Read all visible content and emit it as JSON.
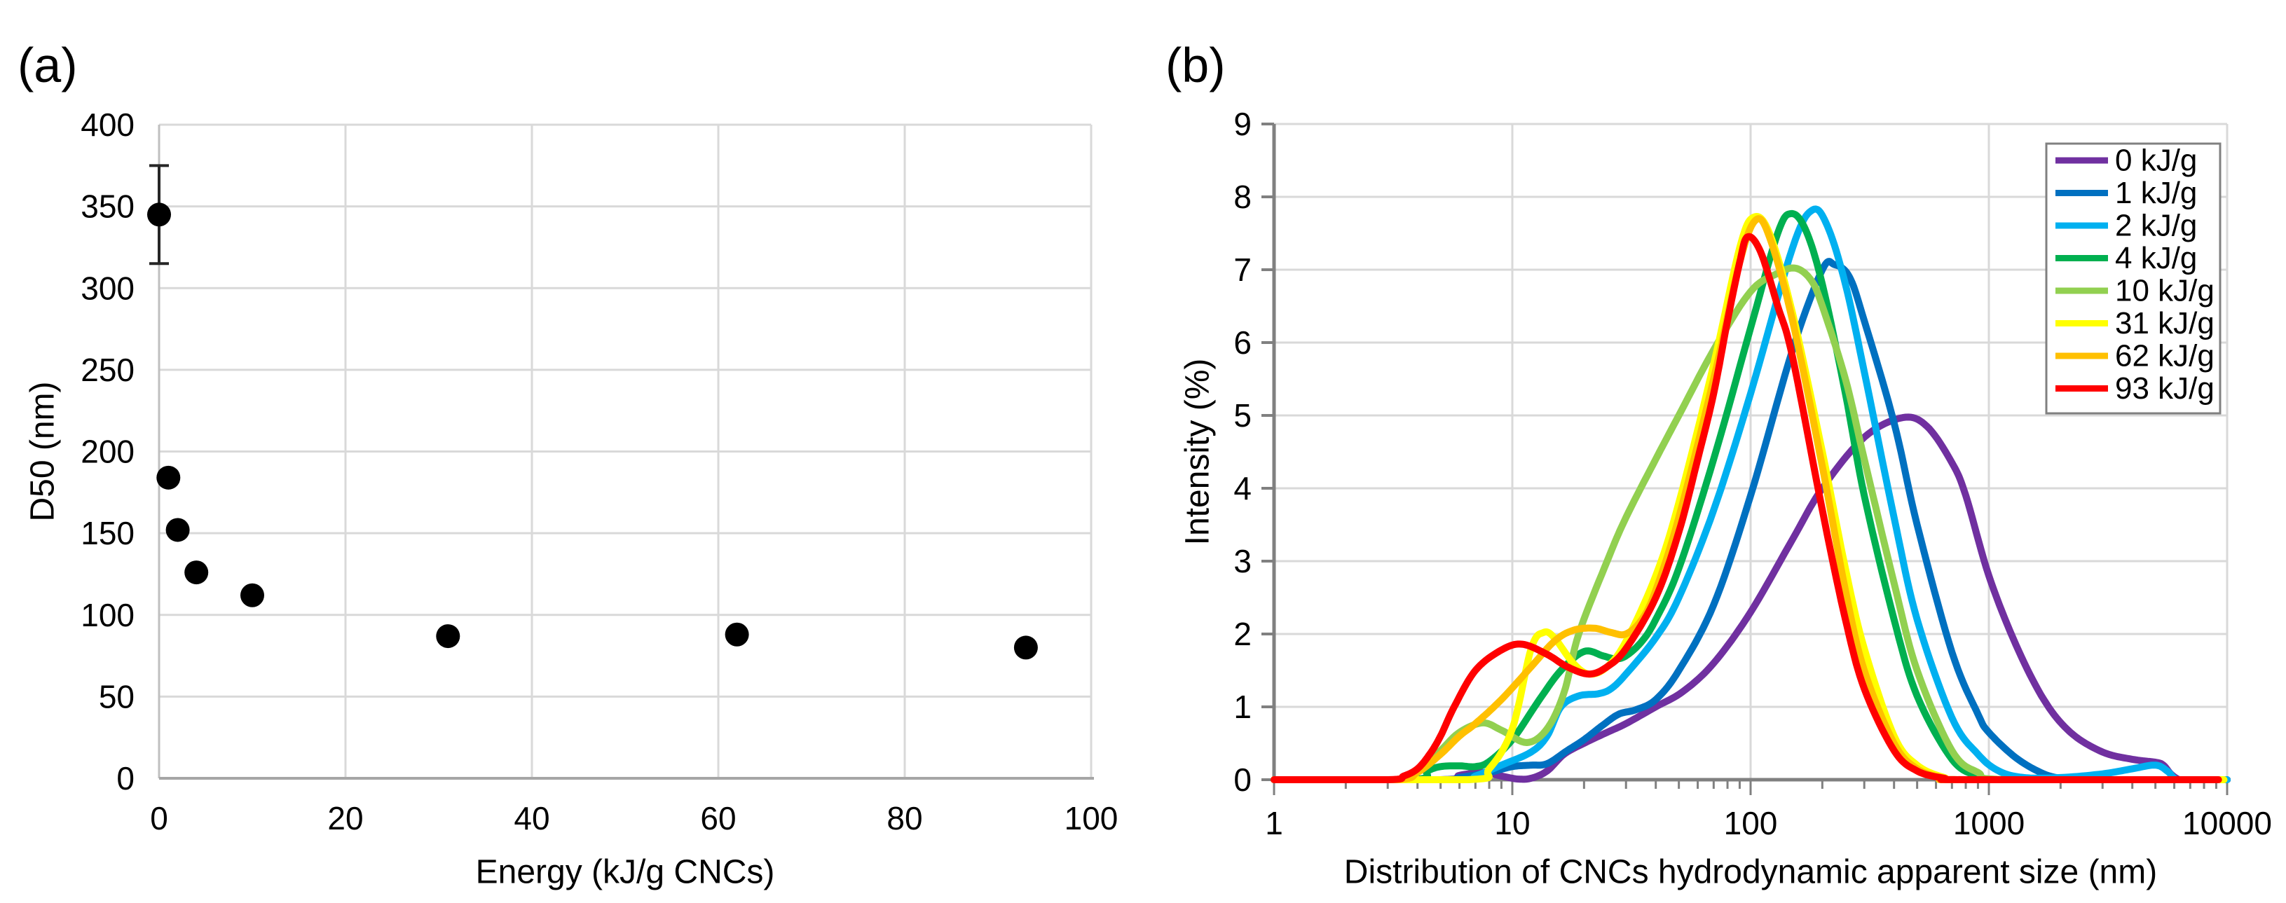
{
  "figure_background": "#ffffff",
  "grid_color": "#d9d9d9",
  "axis_color_a": "#a6a6a6",
  "axis_color_b": "#808080",
  "legend_border_color": "#808080",
  "chart_data": [
    {
      "type": "scatter",
      "panel_label": "(a)",
      "xlabel": "Energy (kJ/g CNCs)",
      "ylabel": "D50 (nm)",
      "xlim": [
        0,
        100
      ],
      "ylim": [
        0,
        400
      ],
      "x_ticks": [
        0,
        20,
        40,
        60,
        80,
        100
      ],
      "y_ticks": [
        0,
        50,
        100,
        150,
        200,
        250,
        300,
        350,
        400
      ],
      "grid": "both",
      "legend_position": "none",
      "marker_color": "#000000",
      "error_bar_color": "#262626",
      "points": [
        {
          "x": 0,
          "y": 345,
          "err": 30
        },
        {
          "x": 1,
          "y": 184
        },
        {
          "x": 2,
          "y": 152
        },
        {
          "x": 4,
          "y": 126
        },
        {
          "x": 10,
          "y": 112
        },
        {
          "x": 31,
          "y": 87
        },
        {
          "x": 62,
          "y": 88
        },
        {
          "x": 93,
          "y": 80
        }
      ]
    },
    {
      "type": "line",
      "panel_label": "(b)",
      "xlabel": "Distribution of CNCs hydrodynamic apparent size (nm)",
      "ylabel": "Intensity (%)",
      "x_scale": "log",
      "xlim": [
        1,
        10000
      ],
      "ylim": [
        0,
        9
      ],
      "x_ticks": [
        1,
        10,
        100,
        1000,
        10000
      ],
      "y_ticks": [
        0,
        1,
        2,
        3,
        4,
        5,
        6,
        7,
        8,
        9
      ],
      "grid": "major",
      "legend_position": "top-right",
      "series": [
        {
          "name": "0 kJ/g",
          "color": "#7030A0",
          "points": [
            [
              1,
              0
            ],
            [
              5,
              0
            ],
            [
              6,
              0.06
            ],
            [
              7.5,
              0.1
            ],
            [
              9,
              0.05
            ],
            [
              10.5,
              0.01
            ],
            [
              12,
              0.02
            ],
            [
              14,
              0.12
            ],
            [
              16.5,
              0.35
            ],
            [
              20,
              0.5
            ],
            [
              25,
              0.65
            ],
            [
              30,
              0.77
            ],
            [
              40,
              1.0
            ],
            [
              52,
              1.21
            ],
            [
              70,
              1.6
            ],
            [
              100,
              2.3
            ],
            [
              150,
              3.3
            ],
            [
              200,
              4.0
            ],
            [
              300,
              4.7
            ],
            [
              435,
              4.97
            ],
            [
              550,
              4.85
            ],
            [
              700,
              4.35
            ],
            [
              800,
              3.9
            ],
            [
              1000,
              2.8
            ],
            [
              1300,
              1.85
            ],
            [
              1700,
              1.1
            ],
            [
              2200,
              0.65
            ],
            [
              3000,
              0.38
            ],
            [
              4000,
              0.28
            ],
            [
              5000,
              0.24
            ],
            [
              5400,
              0.2
            ],
            [
              5800,
              0.08
            ],
            [
              6200,
              0.01
            ],
            [
              6500,
              0
            ],
            [
              10000,
              0
            ]
          ]
        },
        {
          "name": "1 kJ/g",
          "color": "#0070C0",
          "points": [
            [
              1,
              0
            ],
            [
              5,
              0
            ],
            [
              6,
              0.03
            ],
            [
              8,
              0.1
            ],
            [
              10,
              0.18
            ],
            [
              12,
              0.2
            ],
            [
              14,
              0.22
            ],
            [
              17,
              0.4
            ],
            [
              20,
              0.55
            ],
            [
              24,
              0.75
            ],
            [
              28,
              0.9
            ],
            [
              33,
              0.96
            ],
            [
              40,
              1.1
            ],
            [
              50,
              1.5
            ],
            [
              70,
              2.4
            ],
            [
              100,
              3.9
            ],
            [
              150,
              5.9
            ],
            [
              200,
              7.0
            ],
            [
              225,
              7.07
            ],
            [
              260,
              6.9
            ],
            [
              300,
              6.3
            ],
            [
              400,
              4.9
            ],
            [
              500,
              3.5
            ],
            [
              700,
              1.75
            ],
            [
              900,
              0.9
            ],
            [
              1000,
              0.65
            ],
            [
              1300,
              0.3
            ],
            [
              1700,
              0.08
            ],
            [
              2100,
              0.01
            ],
            [
              2500,
              0
            ],
            [
              10000,
              0
            ]
          ]
        },
        {
          "name": "2 kJ/g",
          "color": "#00B0F0",
          "points": [
            [
              1,
              0
            ],
            [
              6,
              0
            ],
            [
              7,
              0.05
            ],
            [
              9,
              0.2
            ],
            [
              12,
              0.38
            ],
            [
              14,
              0.6
            ],
            [
              16,
              1.0
            ],
            [
              19,
              1.15
            ],
            [
              23,
              1.18
            ],
            [
              26,
              1.25
            ],
            [
              30,
              1.45
            ],
            [
              40,
              1.95
            ],
            [
              50,
              2.5
            ],
            [
              70,
              3.7
            ],
            [
              100,
              5.3
            ],
            [
              150,
              7.3
            ],
            [
              182,
              7.82
            ],
            [
              210,
              7.6
            ],
            [
              250,
              6.8
            ],
            [
              300,
              5.6
            ],
            [
              400,
              3.6
            ],
            [
              500,
              2.2
            ],
            [
              700,
              0.85
            ],
            [
              900,
              0.35
            ],
            [
              1100,
              0.12
            ],
            [
              1400,
              0.03
            ],
            [
              2000,
              0.03
            ],
            [
              3000,
              0.08
            ],
            [
              4000,
              0.15
            ],
            [
              5000,
              0.2
            ],
            [
              5600,
              0.12
            ],
            [
              6000,
              0.02
            ],
            [
              6300,
              0
            ],
            [
              10000,
              0
            ]
          ]
        },
        {
          "name": "4 kJ/g",
          "color": "#00B050",
          "points": [
            [
              1,
              0
            ],
            [
              3.8,
              0
            ],
            [
              4.4,
              0.12
            ],
            [
              5,
              0.18
            ],
            [
              6,
              0.19
            ],
            [
              7,
              0.18
            ],
            [
              8,
              0.25
            ],
            [
              10,
              0.55
            ],
            [
              13,
              1.1
            ],
            [
              16,
              1.5
            ],
            [
              20,
              1.76
            ],
            [
              24,
              1.7
            ],
            [
              27,
              1.66
            ],
            [
              30,
              1.7
            ],
            [
              35,
              1.9
            ],
            [
              40,
              2.2
            ],
            [
              50,
              2.9
            ],
            [
              70,
              4.4
            ],
            [
              100,
              6.2
            ],
            [
              130,
              7.5
            ],
            [
              148,
              7.77
            ],
            [
              170,
              7.55
            ],
            [
              200,
              6.8
            ],
            [
              250,
              5.3
            ],
            [
              300,
              3.9
            ],
            [
              400,
              2.2
            ],
            [
              500,
              1.15
            ],
            [
              700,
              0.28
            ],
            [
              900,
              0.05
            ],
            [
              1100,
              0
            ],
            [
              9500,
              0
            ]
          ]
        },
        {
          "name": "10 kJ/g",
          "color": "#92D050",
          "points": [
            [
              1,
              0
            ],
            [
              3.4,
              0
            ],
            [
              4,
              0.1
            ],
            [
              5,
              0.4
            ],
            [
              6,
              0.65
            ],
            [
              7.5,
              0.78
            ],
            [
              9,
              0.68
            ],
            [
              11.5,
              0.51
            ],
            [
              14,
              0.7
            ],
            [
              16.5,
              1.2
            ],
            [
              19,
              2.0
            ],
            [
              25,
              3.0
            ],
            [
              30,
              3.6
            ],
            [
              40,
              4.4
            ],
            [
              50,
              5.0
            ],
            [
              70,
              5.9
            ],
            [
              100,
              6.7
            ],
            [
              130,
              6.95
            ],
            [
              155,
              7.02
            ],
            [
              180,
              6.85
            ],
            [
              200,
              6.5
            ],
            [
              250,
              5.5
            ],
            [
              300,
              4.4
            ],
            [
              400,
              2.7
            ],
            [
              500,
              1.5
            ],
            [
              700,
              0.4
            ],
            [
              900,
              0.1
            ],
            [
              1200,
              0
            ],
            [
              9600,
              0
            ]
          ]
        },
        {
          "name": "31 kJ/g",
          "color": "#FFFF00",
          "points": [
            [
              1,
              0
            ],
            [
              6.5,
              0
            ],
            [
              8,
              0.15
            ],
            [
              10,
              0.7
            ],
            [
              12,
              1.8
            ],
            [
              13.5,
              2.02
            ],
            [
              15,
              1.95
            ],
            [
              18,
              1.6
            ],
            [
              21,
              1.45
            ],
            [
              25,
              1.55
            ],
            [
              30,
              1.9
            ],
            [
              40,
              2.8
            ],
            [
              50,
              3.8
            ],
            [
              70,
              5.7
            ],
            [
              90,
              7.3
            ],
            [
              103,
              7.72
            ],
            [
              120,
              7.5
            ],
            [
              150,
              6.4
            ],
            [
              200,
              4.5
            ],
            [
              250,
              2.9
            ],
            [
              300,
              1.8
            ],
            [
              400,
              0.6
            ],
            [
              500,
              0.2
            ],
            [
              650,
              0.03
            ],
            [
              800,
              0
            ],
            [
              9700,
              0
            ]
          ]
        },
        {
          "name": "62 kJ/g",
          "color": "#FFC000",
          "points": [
            [
              1,
              0
            ],
            [
              3.2,
              0
            ],
            [
              4,
              0.1
            ],
            [
              5,
              0.35
            ],
            [
              6,
              0.6
            ],
            [
              7,
              0.77
            ],
            [
              9,
              1.1
            ],
            [
              12,
              1.55
            ],
            [
              15,
              1.9
            ],
            [
              18,
              2.05
            ],
            [
              22,
              2.08
            ],
            [
              26,
              2.02
            ],
            [
              30,
              2.0
            ],
            [
              35,
              2.2
            ],
            [
              40,
              2.6
            ],
            [
              50,
              3.6
            ],
            [
              70,
              5.5
            ],
            [
              90,
              7.1
            ],
            [
              105,
              7.68
            ],
            [
              120,
              7.45
            ],
            [
              150,
              6.3
            ],
            [
              200,
              4.3
            ],
            [
              250,
              2.6
            ],
            [
              300,
              1.5
            ],
            [
              400,
              0.5
            ],
            [
              500,
              0.15
            ],
            [
              650,
              0.02
            ],
            [
              780,
              0
            ],
            [
              9000,
              0
            ]
          ]
        },
        {
          "name": "93 kJ/g",
          "color": "#FF0000",
          "points": [
            [
              1,
              0
            ],
            [
              3,
              0
            ],
            [
              3.5,
              0.05
            ],
            [
              4,
              0.15
            ],
            [
              4.5,
              0.35
            ],
            [
              5,
              0.6
            ],
            [
              5.7,
              1.0
            ],
            [
              7,
              1.5
            ],
            [
              9,
              1.78
            ],
            [
              11,
              1.86
            ],
            [
              14,
              1.72
            ],
            [
              17,
              1.55
            ],
            [
              21,
              1.45
            ],
            [
              25,
              1.55
            ],
            [
              30,
              1.8
            ],
            [
              40,
              2.5
            ],
            [
              50,
              3.4
            ],
            [
              60,
              4.4
            ],
            [
              70,
              5.3
            ],
            [
              80,
              6.3
            ],
            [
              90,
              7.1
            ],
            [
              97,
              7.45
            ],
            [
              110,
              7.25
            ],
            [
              130,
              6.5
            ],
            [
              150,
              5.8
            ],
            [
              200,
              3.7
            ],
            [
              250,
              2.2
            ],
            [
              300,
              1.25
            ],
            [
              400,
              0.4
            ],
            [
              500,
              0.12
            ],
            [
              650,
              0.02
            ],
            [
              800,
              0
            ],
            [
              9200,
              0
            ]
          ]
        }
      ]
    }
  ]
}
